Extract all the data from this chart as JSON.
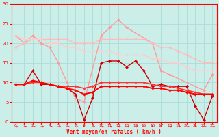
{
  "xlabel": "Vent moyen/en rafales ( km/h )",
  "xlim": [
    -0.5,
    23.5
  ],
  "ylim": [
    0,
    30
  ],
  "yticks": [
    0,
    5,
    10,
    15,
    20,
    25,
    30
  ],
  "xticks": [
    0,
    1,
    2,
    3,
    4,
    5,
    6,
    7,
    8,
    9,
    10,
    11,
    12,
    13,
    14,
    15,
    16,
    17,
    18,
    19,
    20,
    21,
    22,
    23
  ],
  "bg_color": "#cceee8",
  "grid_color": "#aaddda",
  "series": [
    {
      "x": [
        0,
        1,
        2,
        3,
        4,
        5,
        6,
        7,
        8,
        10,
        11,
        12,
        13,
        16,
        17,
        18,
        22,
        23
      ],
      "y": [
        22,
        20,
        22,
        20,
        19,
        15,
        10,
        6,
        5,
        22,
        24,
        26,
        24,
        20,
        13,
        12,
        8,
        12
      ],
      "color": "#ff9999",
      "lw": 1.0,
      "ms": 2.0
    },
    {
      "x": [
        0,
        1,
        2,
        3,
        4,
        5,
        6,
        7,
        8,
        9,
        10,
        11,
        12,
        13,
        14,
        15,
        16,
        17,
        18,
        19,
        20,
        21,
        22,
        23
      ],
      "y": [
        19,
        20,
        21,
        21,
        21,
        21,
        21,
        20,
        20,
        20,
        21,
        21,
        21,
        21,
        21,
        21,
        20,
        19,
        19,
        18,
        17,
        16,
        15,
        15
      ],
      "color": "#ffbbbb",
      "lw": 1.0,
      "ms": 1.8
    },
    {
      "x": [
        0,
        1,
        2,
        3,
        4,
        5,
        6,
        7,
        8,
        9,
        10,
        11,
        12,
        13,
        14,
        15,
        16,
        17,
        18,
        19,
        20,
        21,
        22,
        23
      ],
      "y": [
        22,
        21,
        21,
        21,
        20,
        20,
        19,
        19,
        18,
        18,
        18,
        18,
        17,
        17,
        17,
        17,
        16,
        16,
        15,
        15,
        14,
        13,
        13,
        13
      ],
      "color": "#ffcccc",
      "lw": 1.0,
      "ms": 1.8
    },
    {
      "x": [
        0,
        1,
        2,
        3,
        4,
        5,
        6,
        7,
        8,
        9,
        10,
        11,
        12,
        13,
        14,
        15,
        16,
        17,
        18,
        19,
        20,
        21,
        22,
        23
      ],
      "y": [
        9.5,
        9.5,
        13,
        9.5,
        9.5,
        9,
        8.5,
        7,
        0.5,
        6,
        15,
        15.5,
        15.5,
        14,
        15.5,
        13,
        9,
        9.5,
        9,
        9,
        9,
        4,
        0.5,
        6.5
      ],
      "color": "#cc0000",
      "lw": 1.0,
      "ms": 2.2
    },
    {
      "x": [
        0,
        1,
        2,
        3,
        4,
        5,
        6,
        7,
        8,
        9,
        10,
        11,
        12,
        13,
        14,
        15,
        16,
        17,
        18,
        19,
        20,
        21,
        22,
        23
      ],
      "y": [
        9.5,
        9.5,
        10,
        10,
        9.5,
        9,
        9,
        9,
        8.5,
        9,
        10,
        10,
        10,
        10,
        10,
        10,
        9.5,
        9,
        9,
        8.5,
        8,
        7.5,
        7,
        7
      ],
      "color": "#ff3333",
      "lw": 1.2,
      "ms": 1.8
    },
    {
      "x": [
        0,
        1,
        2,
        3,
        4,
        5,
        6,
        7,
        8,
        9,
        10,
        11,
        12,
        13,
        14,
        15,
        16,
        17,
        18,
        19,
        20,
        21,
        22,
        23
      ],
      "y": [
        9.5,
        9.5,
        10.5,
        10,
        9.5,
        9,
        8.5,
        8,
        7,
        7.5,
        9,
        9,
        9,
        9,
        9,
        9,
        8.5,
        8.5,
        8,
        8,
        7.5,
        7,
        7,
        7
      ],
      "color": "#ff0000",
      "lw": 1.4,
      "ms": 1.8
    }
  ],
  "arrow_color": "#ff0000"
}
